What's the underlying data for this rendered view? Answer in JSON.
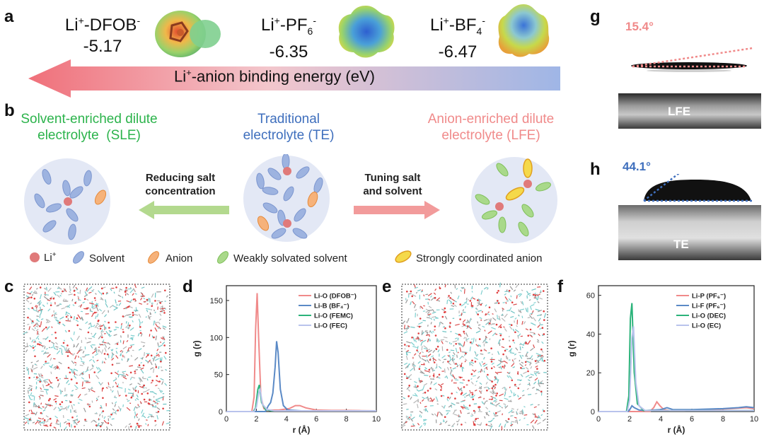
{
  "panel_a": {
    "label": "a",
    "anions": [
      {
        "name_parts": [
          "Li",
          "+",
          "-DFOB",
          "-",
          ""
        ],
        "energy": "-5.17"
      },
      {
        "name_parts": [
          "Li",
          "+",
          "-PF",
          "6",
          "-"
        ],
        "energy": "-6.35"
      },
      {
        "name_parts": [
          "Li",
          "+",
          "-BF",
          "4",
          "-"
        ],
        "energy": "-6.47"
      }
    ],
    "arrow_label_parts": [
      "Li",
      "+",
      "-anion binding energy (eV)"
    ]
  },
  "panel_b": {
    "label": "b",
    "sle_title": [
      "Solvent-enriched dilute",
      "electrolyte  (SLE)"
    ],
    "te_title": [
      "Traditional",
      "electrolyte (TE)"
    ],
    "lfe_title": [
      "Anion-enriched dilute",
      "electrolyte (LFE)"
    ],
    "left_arrow_label": [
      "Reducing salt",
      "concentration"
    ],
    "right_arrow_label": [
      "Tuning salt",
      "and solvent"
    ],
    "legend": {
      "li_label": "Li",
      "li_sup": "+",
      "solvent": "Solvent",
      "anion": "Anion",
      "weak": "Weakly solvated solvent",
      "strong": "Strongly coordinated anion"
    }
  },
  "panel_c": {
    "label": "c"
  },
  "panel_e": {
    "label": "e"
  },
  "panel_g": {
    "label": "g",
    "angle": "15.4°",
    "name": "LFE"
  },
  "panel_h": {
    "label": "h",
    "angle": "44.1°",
    "name": "TE"
  },
  "colors": {
    "pink": "#f08a8a",
    "blue": "#3f6fbd",
    "green": "#2bb34b",
    "lightblue": "#b9c3ec"
  },
  "chart_data": [
    {
      "id": "d",
      "label": "d",
      "type": "line",
      "xlabel": "r (Å)",
      "ylabel": "g (r)",
      "xlim": [
        0,
        10
      ],
      "ylim": [
        0,
        170
      ],
      "xticks": [
        "0",
        "2",
        "4",
        "6",
        "8",
        "10"
      ],
      "yticks": [
        "0",
        "50",
        "100",
        "150"
      ],
      "xtick_values": [
        0,
        2,
        4,
        6,
        8,
        10
      ],
      "ytick_values": [
        0,
        50,
        100,
        150
      ],
      "legend": "top-right",
      "series": [
        {
          "name": "Li-O (DFOB⁻)",
          "color": "#f08a8a",
          "x": [
            0,
            1.7,
            1.85,
            1.95,
            2.05,
            2.15,
            2.3,
            2.5,
            2.8,
            3.5,
            4.2,
            4.6,
            4.9,
            5.3,
            6,
            7,
            8,
            9,
            10
          ],
          "y": [
            0,
            0,
            20,
            110,
            160,
            100,
            20,
            4,
            2,
            2,
            4,
            8,
            8,
            5,
            2,
            1.5,
            1.5,
            1.2,
            1
          ]
        },
        {
          "name": "Li-B (BF₄⁻)",
          "color": "#5b8ac6",
          "x": [
            0,
            2.6,
            2.8,
            2.95,
            3.1,
            3.25,
            3.35,
            3.45,
            3.6,
            3.8,
            4.1,
            5,
            6,
            7,
            8,
            9,
            10
          ],
          "y": [
            0,
            0,
            8,
            12,
            25,
            60,
            95,
            80,
            30,
            8,
            2,
            1,
            1,
            1,
            1,
            1,
            1
          ]
        },
        {
          "name": "Li-O (FEMC)",
          "color": "#2bb37a",
          "x": [
            0,
            1.8,
            1.95,
            2.1,
            2.2,
            2.35,
            2.6,
            3,
            4,
            6,
            8,
            10
          ],
          "y": [
            0,
            0,
            5,
            30,
            36,
            12,
            3,
            1,
            1,
            1,
            1,
            1
          ]
        },
        {
          "name": "Li-O (FEC)",
          "color": "#b9c3ec",
          "x": [
            0,
            1.85,
            2.0,
            2.15,
            2.25,
            2.4,
            2.7,
            3.2,
            4,
            6,
            8,
            10
          ],
          "y": [
            0,
            0,
            6,
            25,
            30,
            10,
            3,
            1,
            1,
            1,
            1,
            1
          ]
        }
      ]
    },
    {
      "id": "f",
      "label": "f",
      "type": "line",
      "xlabel": "r (Å)",
      "ylabel": "g (r)",
      "xlim": [
        0,
        10
      ],
      "ylim": [
        0,
        65
      ],
      "xticks": [
        "0",
        "2",
        "4",
        "6",
        "8",
        "10"
      ],
      "yticks": [
        "0",
        "20",
        "40",
        "60"
      ],
      "xtick_values": [
        0,
        2,
        4,
        6,
        8,
        10
      ],
      "ytick_values": [
        0,
        20,
        40,
        60
      ],
      "legend": "top-right",
      "series": [
        {
          "name": "Li-P (PF₆⁻)",
          "color": "#f08a8a",
          "x": [
            0,
            3.3,
            3.55,
            3.75,
            3.95,
            4.2,
            4.6,
            5.5,
            7,
            8.5,
            9.5,
            10
          ],
          "y": [
            0,
            0,
            2,
            5,
            3,
            1,
            0.5,
            0.5,
            1,
            1.5,
            2,
            1.5
          ]
        },
        {
          "name": "Li-F (PF₆⁻)",
          "color": "#5b8ac6",
          "x": [
            0,
            1.9,
            2.05,
            2.15,
            2.3,
            2.6,
            3,
            4,
            4.4,
            4.8,
            6,
            8,
            9,
            9.5,
            10
          ],
          "y": [
            0,
            0,
            1.5,
            3,
            2,
            0.8,
            0.5,
            1,
            2,
            1,
            1,
            1.5,
            2,
            2.5,
            2
          ]
        },
        {
          "name": "Li-O (DEC)",
          "color": "#2bb37a",
          "x": [
            0,
            1.8,
            1.95,
            2.05,
            2.15,
            2.3,
            2.5,
            2.9,
            4,
            6,
            8,
            10
          ],
          "y": [
            0,
            0,
            8,
            48,
            56,
            20,
            4,
            0.5,
            0.5,
            0.5,
            0.5,
            0.5
          ]
        },
        {
          "name": "Li-O (EC)",
          "color": "#b9c3ec",
          "x": [
            0,
            1.85,
            2.0,
            2.15,
            2.25,
            2.4,
            2.6,
            3,
            4,
            6,
            8,
            10
          ],
          "y": [
            0,
            0,
            6,
            38,
            44,
            15,
            3,
            0.5,
            0.5,
            0.5,
            0.5,
            0.5
          ]
        }
      ]
    }
  ]
}
